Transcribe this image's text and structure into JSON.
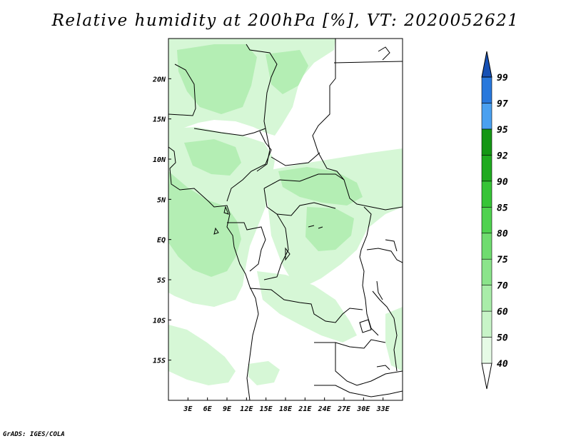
{
  "title": "Relative humidity at 200hPa [%], VT: 2020052621",
  "footer": "GrADS: IGES/COLA",
  "map": {
    "lon_range": [
      0,
      36
    ],
    "lat_range": [
      -20,
      25
    ],
    "lon_ticks": [
      {
        "lon": 3,
        "label": "3E"
      },
      {
        "lon": 6,
        "label": "6E"
      },
      {
        "lon": 9,
        "label": "9E"
      },
      {
        "lon": 12,
        "label": "12E"
      },
      {
        "lon": 15,
        "label": "15E"
      },
      {
        "lon": 18,
        "label": "18E"
      },
      {
        "lon": 21,
        "label": "21E"
      },
      {
        "lon": 24,
        "label": "24E"
      },
      {
        "lon": 27,
        "label": "27E"
      },
      {
        "lon": 30,
        "label": "30E"
      },
      {
        "lon": 33,
        "label": "33E"
      }
    ],
    "lat_ticks": [
      {
        "lat": 20,
        "label": "20N"
      },
      {
        "lat": 15,
        "label": "15N"
      },
      {
        "lat": 10,
        "label": "10N"
      },
      {
        "lat": 5,
        "label": "5N"
      },
      {
        "lat": 0,
        "label": "EQ"
      },
      {
        "lat": -5,
        "label": "5S"
      },
      {
        "lat": -10,
        "label": "10S"
      },
      {
        "lat": -15,
        "label": "15S"
      }
    ]
  },
  "colorbar": {
    "levels": [
      "40",
      "50",
      "60",
      "70",
      "75",
      "80",
      "85",
      "90",
      "92",
      "95",
      "97",
      "99"
    ],
    "colors": [
      "#e6fbe6",
      "#c8f4c8",
      "#a9eda9",
      "#8be48b",
      "#6fdc6f",
      "#4fd24f",
      "#36c436",
      "#1faa1f",
      "#149614",
      "#4aa0f0",
      "#2878dc",
      "#1a5fc4"
    ],
    "under_color": "#ffffff",
    "over_color": "#1650b4"
  },
  "colors": {
    "coast": "#000000",
    "light_green": "#d6f7d6",
    "mid_green": "#b4eeb4"
  }
}
